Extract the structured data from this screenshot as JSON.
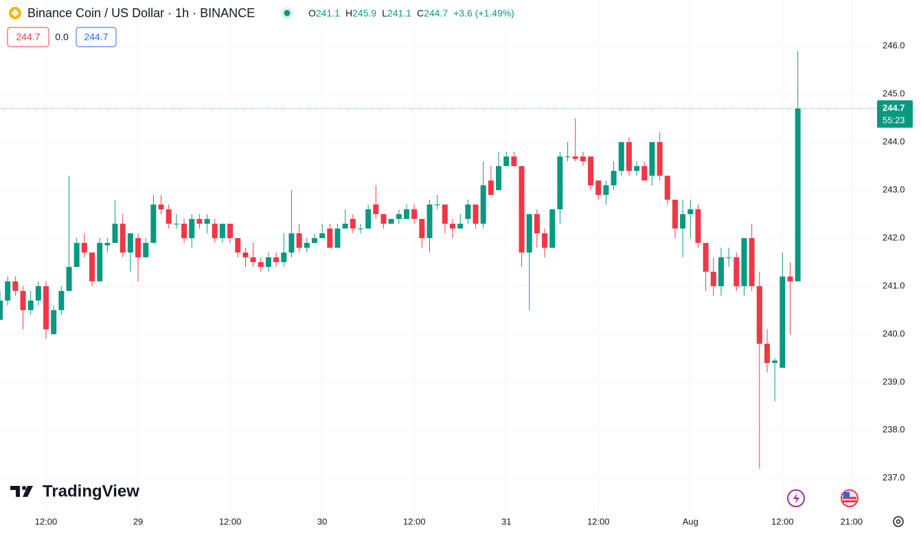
{
  "chart_data": {
    "type": "candlestick",
    "title": "Binance Coin / US Dollar · 1h · BINANCE",
    "ohlc_legend": [
      {
        "label": "O",
        "value": "241.1"
      },
      {
        "label": "H",
        "value": "245.9"
      },
      {
        "label": "L",
        "value": "241.1"
      },
      {
        "label": "C",
        "value": "244.7"
      }
    ],
    "change": "+3.6 (+1.49%)",
    "indicator_values": [
      "244.7",
      "0.0",
      "244.7"
    ],
    "up_color": "#089981",
    "down_color": "#f23645",
    "x": [
      6,
      7,
      8,
      9,
      10,
      11,
      12,
      13,
      14,
      15,
      16,
      17,
      18,
      19,
      20,
      21,
      22,
      23,
      24,
      25,
      26,
      27,
      28,
      29,
      30,
      31,
      32,
      33,
      34,
      35,
      36,
      37,
      38,
      39,
      40,
      41,
      42,
      43,
      44,
      45,
      46,
      47,
      48,
      49,
      50,
      51,
      52,
      53,
      54,
      55,
      56,
      57,
      58,
      59,
      60,
      61,
      62,
      63,
      64,
      65,
      66,
      67,
      68,
      69,
      70,
      71,
      72,
      73,
      74,
      75,
      76,
      77,
      78,
      79,
      80,
      81,
      82,
      83,
      84,
      85,
      86,
      87,
      88,
      89,
      90,
      91,
      92,
      93,
      94,
      95,
      96,
      97,
      98,
      99,
      100,
      101,
      102,
      103,
      104,
      105,
      106,
      107,
      108,
      109,
      110
    ],
    "open": [
      240.3,
      240.7,
      241.1,
      240.9,
      240.5,
      240.7,
      241.0,
      240.0,
      240.5,
      240.9,
      241.4,
      241.9,
      241.7,
      241.1,
      241.85,
      241.9,
      242.3,
      241.7,
      242.0,
      241.6,
      241.9,
      242.7,
      242.6,
      242.3,
      242.3,
      242.0,
      242.4,
      242.3,
      242.3,
      242.0,
      242.3,
      242.0,
      241.7,
      241.6,
      241.5,
      241.4,
      241.6,
      241.5,
      241.7,
      242.1,
      241.8,
      241.9,
      242.0,
      242.2,
      241.8,
      242.2,
      242.4,
      242.2,
      242.2,
      242.7,
      242.5,
      242.3,
      242.4,
      242.4,
      242.6,
      242.4,
      242.0,
      242.7,
      242.7,
      242.3,
      242.2,
      242.4,
      242.7,
      242.3,
      243.2,
      243.0,
      243.5,
      243.7,
      243.5,
      241.7,
      242.5,
      242.1,
      241.8,
      242.6,
      243.7,
      243.7,
      243.7,
      243.7,
      243.2,
      242.9,
      243.1,
      243.4,
      244.0,
      243.4,
      243.5,
      243.3,
      244.0,
      243.3,
      242.8,
      242.2,
      242.5,
      242.6,
      241.9,
      241.3,
      241.0,
      241.6,
      241.6,
      241.0,
      242.0,
      241.0,
      239.8,
      239.4,
      239.3,
      241.2,
      241.1
    ],
    "high": [
      240.9,
      241.2,
      241.2,
      241.0,
      240.9,
      241.1,
      241.1,
      240.6,
      241.0,
      243.3,
      242.0,
      242.1,
      241.7,
      242.0,
      242.0,
      242.8,
      242.5,
      242.1,
      242.1,
      242.0,
      242.9,
      242.9,
      242.7,
      242.5,
      242.4,
      242.5,
      242.5,
      242.5,
      242.4,
      242.3,
      242.3,
      242.0,
      241.8,
      241.9,
      241.6,
      241.7,
      241.7,
      242.1,
      243.0,
      242.3,
      242.0,
      242.1,
      242.3,
      242.3,
      242.3,
      242.6,
      242.5,
      242.3,
      242.7,
      243.1,
      242.5,
      242.4,
      242.6,
      242.7,
      242.7,
      242.4,
      242.8,
      242.9,
      242.7,
      242.4,
      242.5,
      242.8,
      242.7,
      243.6,
      243.5,
      243.8,
      243.8,
      243.8,
      243.5,
      242.5,
      242.6,
      242.2,
      242.6,
      243.8,
      244.0,
      244.5,
      243.8,
      243.7,
      243.2,
      243.2,
      243.6,
      244.0,
      244.1,
      243.6,
      243.6,
      244.0,
      244.2,
      243.3,
      242.8,
      242.8,
      242.8,
      242.7,
      241.9,
      241.6,
      241.8,
      241.8,
      241.7,
      242.0,
      242.3,
      241.3,
      240.1,
      239.5,
      241.7,
      241.5,
      245.9
    ],
    "low": [
      240.3,
      240.6,
      240.8,
      240.1,
      240.4,
      240.6,
      239.9,
      240.0,
      240.4,
      240.9,
      241.4,
      241.6,
      241.0,
      241.1,
      241.7,
      241.9,
      241.6,
      241.3,
      241.1,
      241.6,
      241.9,
      242.5,
      242.2,
      242.2,
      241.9,
      241.8,
      242.2,
      242.1,
      241.9,
      241.9,
      241.9,
      241.6,
      241.4,
      241.4,
      241.3,
      241.3,
      241.4,
      241.4,
      241.6,
      241.7,
      241.7,
      241.9,
      242.0,
      241.8,
      241.8,
      242.2,
      242.1,
      242.1,
      242.2,
      242.4,
      242.2,
      242.3,
      242.3,
      242.4,
      242.3,
      241.8,
      241.7,
      242.6,
      242.1,
      242.0,
      242.2,
      242.3,
      242.2,
      242.2,
      242.9,
      243.0,
      243.5,
      243.5,
      241.4,
      240.5,
      241.8,
      241.6,
      241.8,
      242.3,
      243.6,
      243.6,
      243.5,
      243.0,
      242.8,
      242.7,
      243.0,
      243.3,
      243.3,
      243.3,
      243.2,
      243.1,
      243.2,
      242.7,
      242.0,
      241.6,
      242.0,
      241.8,
      240.9,
      240.8,
      240.8,
      241.4,
      240.9,
      240.8,
      240.9,
      237.2,
      239.2,
      238.6,
      239.3,
      240.0,
      241.1
    ],
    "close": [
      240.7,
      241.1,
      240.9,
      240.5,
      240.7,
      241.0,
      240.1,
      240.5,
      240.9,
      241.4,
      241.9,
      241.7,
      241.1,
      241.9,
      241.9,
      242.3,
      241.7,
      242.1,
      241.6,
      241.9,
      242.7,
      242.6,
      242.3,
      242.3,
      242.0,
      242.4,
      242.3,
      242.4,
      242.0,
      242.3,
      242.0,
      241.7,
      241.6,
      241.5,
      241.4,
      241.6,
      241.5,
      241.7,
      242.1,
      241.8,
      241.9,
      242.0,
      242.1,
      241.8,
      242.2,
      242.3,
      242.2,
      242.2,
      242.6,
      242.5,
      242.3,
      242.4,
      242.5,
      242.6,
      242.4,
      242.0,
      242.7,
      242.7,
      242.3,
      242.2,
      242.3,
      242.7,
      242.3,
      243.1,
      242.9,
      243.5,
      243.7,
      243.5,
      241.7,
      242.5,
      242.1,
      241.8,
      242.6,
      243.7,
      243.7,
      243.65,
      243.6,
      243.1,
      242.9,
      243.1,
      243.4,
      244.0,
      243.4,
      243.5,
      243.2,
      244.0,
      243.3,
      242.8,
      242.2,
      242.5,
      242.6,
      241.9,
      241.3,
      241.0,
      241.6,
      241.6,
      241.0,
      242.0,
      241.0,
      239.8,
      239.4,
      239.45,
      241.2,
      241.1,
      244.7
    ],
    "xlim": [
      6.0,
      119.7
    ],
    "xticks": [
      {
        "value": 12,
        "label": "12:00"
      },
      {
        "value": 24,
        "label": "29"
      },
      {
        "value": 36,
        "label": "12:00"
      },
      {
        "value": 48,
        "label": "30"
      },
      {
        "value": 60,
        "label": "12:00"
      },
      {
        "value": 72,
        "label": "31"
      },
      {
        "value": 84,
        "label": "12:00"
      },
      {
        "value": 96,
        "label": "Aug"
      },
      {
        "value": 108,
        "label": "12:00"
      },
      {
        "value": 117,
        "label": "21:00"
      }
    ],
    "ylim": [
      236.31,
      246.96
    ],
    "yticks": [
      {
        "value": 237,
        "label": "237.0"
      },
      {
        "value": 238,
        "label": "238.0"
      },
      {
        "value": 239,
        "label": "239.0"
      },
      {
        "value": 240,
        "label": "240.0"
      },
      {
        "value": 241,
        "label": "241.0"
      },
      {
        "value": 242,
        "label": "242.0"
      },
      {
        "value": 243,
        "label": "243.0"
      },
      {
        "value": 244,
        "label": "244.0"
      },
      {
        "value": 245,
        "label": "245.0"
      },
      {
        "value": 246,
        "label": "246.0"
      }
    ],
    "grid": true,
    "last_price": 244.7,
    "countdown": "55:23",
    "brand": "TradingView"
  }
}
